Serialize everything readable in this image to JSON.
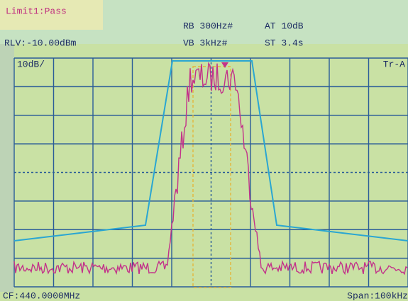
{
  "header": {
    "limit": "Limit1:Pass",
    "rbw": "RB 300Hz#",
    "atten": "AT 10dB",
    "ref_level": "RLV:-10.00dBm",
    "vbw": "VB 3kHz#",
    "sweep": "ST 3.4s"
  },
  "display": {
    "scale": "10dB/",
    "trace": "Tr-A"
  },
  "footer": {
    "center": "CF:440.0000MHz",
    "span": "Span:100kHz"
  }
}
